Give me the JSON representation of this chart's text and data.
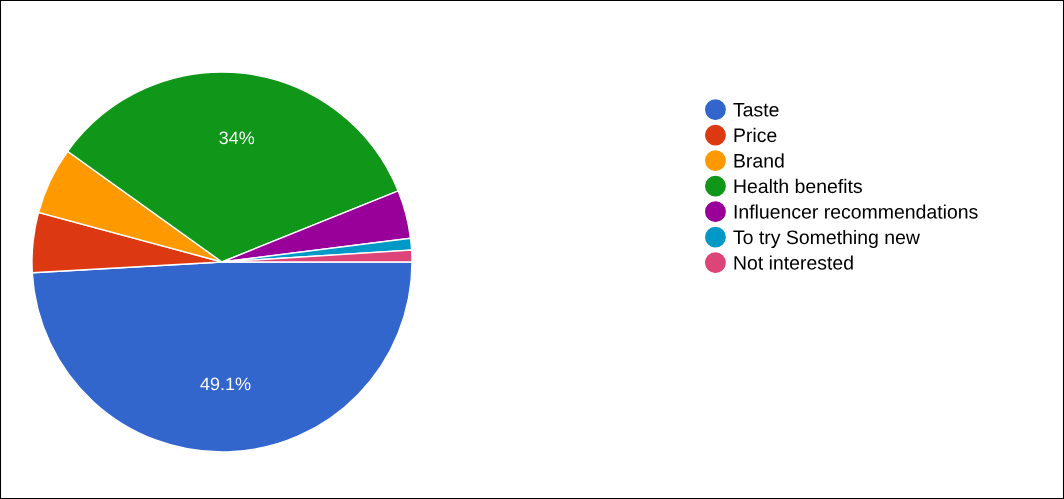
{
  "chart_data": {
    "type": "pie",
    "categories": [
      "Taste",
      "Price",
      "Brand",
      "Health benefits",
      "Influencer recommendations",
      "To try Something new",
      "Not interested"
    ],
    "values": [
      49.1,
      5.1,
      5.7,
      34,
      4.1,
      1.0,
      1.0
    ],
    "colors": [
      "#3366cc",
      "#dc3912",
      "#ff9900",
      "#109618",
      "#990099",
      "#0099c6",
      "#dd4477"
    ],
    "value_labels": [
      "49.1%",
      null,
      null,
      "34%",
      null,
      null,
      null
    ],
    "legend": "right"
  }
}
